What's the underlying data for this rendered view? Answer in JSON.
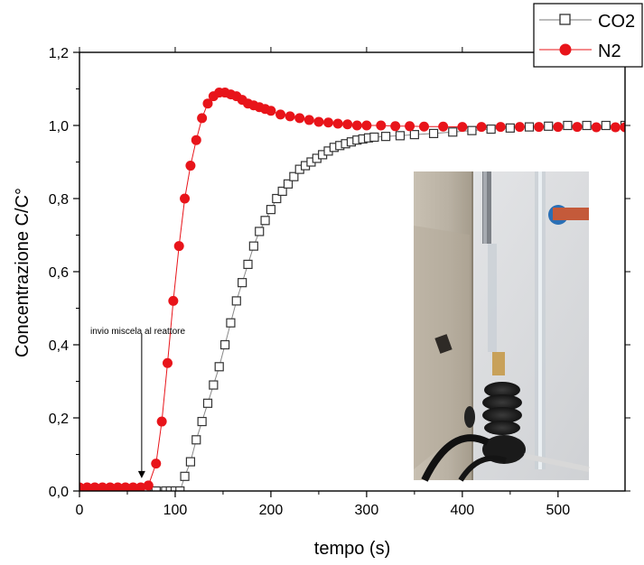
{
  "chart_data": {
    "type": "scatter",
    "xlabel": "tempo (s)",
    "ylabel": "Concentrazione C/C°",
    "xlim": [
      0,
      570
    ],
    "ylim": [
      0,
      1.2
    ],
    "x_ticks": [
      0,
      100,
      200,
      300,
      400,
      500
    ],
    "x_tick_labels": [
      "0",
      "100",
      "200",
      "300",
      "400",
      "500"
    ],
    "y_ticks": [
      0,
      0.2,
      0.4,
      0.6,
      0.8,
      1.0,
      1.2
    ],
    "y_tick_labels": [
      "0,0",
      "0,2",
      "0,4",
      "0,6",
      "0,8",
      "1,0",
      "1,2"
    ],
    "grid": false,
    "legend_position": "top-right",
    "series": [
      {
        "name": "CO2",
        "marker": "hollow-square",
        "color": "#555555",
        "x": [
          0,
          20,
          40,
          60,
          70,
          80,
          90,
          95,
          100,
          105,
          110,
          116,
          122,
          128,
          134,
          140,
          146,
          152,
          158,
          164,
          170,
          176,
          182,
          188,
          194,
          200,
          206,
          212,
          218,
          224,
          230,
          236,
          242,
          248,
          254,
          260,
          266,
          272,
          278,
          284,
          290,
          296,
          302,
          308,
          320,
          335,
          350,
          370,
          390,
          410,
          430,
          450,
          470,
          490,
          510,
          530,
          550,
          570
        ],
        "y": [
          0.0,
          0.0,
          0.0,
          0.0,
          0.0,
          0.0,
          0.0,
          0.0,
          0.0,
          0.0,
          0.04,
          0.08,
          0.14,
          0.19,
          0.24,
          0.29,
          0.34,
          0.4,
          0.46,
          0.52,
          0.57,
          0.62,
          0.67,
          0.71,
          0.74,
          0.77,
          0.8,
          0.82,
          0.84,
          0.86,
          0.88,
          0.89,
          0.9,
          0.91,
          0.92,
          0.93,
          0.94,
          0.945,
          0.95,
          0.955,
          0.96,
          0.963,
          0.966,
          0.968,
          0.97,
          0.972,
          0.975,
          0.978,
          0.982,
          0.986,
          0.99,
          0.993,
          0.996,
          0.998,
          1.0,
          1.0,
          1.0,
          1.0
        ]
      },
      {
        "name": "N2",
        "marker": "filled-circle",
        "color": "#e8141a",
        "x": [
          0,
          8,
          16,
          24,
          32,
          40,
          48,
          56,
          64,
          72,
          80,
          86,
          92,
          98,
          104,
          110,
          116,
          122,
          128,
          134,
          140,
          146,
          152,
          158,
          164,
          170,
          176,
          182,
          188,
          194,
          200,
          210,
          220,
          230,
          240,
          250,
          260,
          270,
          280,
          290,
          300,
          315,
          330,
          345,
          360,
          380,
          400,
          420,
          440,
          460,
          480,
          500,
          520,
          540,
          560,
          570
        ],
        "y": [
          0.01,
          0.01,
          0.01,
          0.01,
          0.01,
          0.01,
          0.01,
          0.01,
          0.01,
          0.015,
          0.075,
          0.19,
          0.35,
          0.52,
          0.67,
          0.8,
          0.89,
          0.96,
          1.02,
          1.06,
          1.08,
          1.09,
          1.09,
          1.085,
          1.08,
          1.07,
          1.06,
          1.055,
          1.05,
          1.045,
          1.04,
          1.03,
          1.025,
          1.02,
          1.015,
          1.01,
          1.008,
          1.005,
          1.003,
          1.0,
          1.0,
          1.0,
          0.998,
          0.998,
          0.997,
          0.997,
          0.996,
          0.996,
          0.996,
          0.996,
          0.996,
          0.996,
          0.996,
          0.995,
          0.995,
          0.995
        ]
      }
    ],
    "annotations": [
      {
        "text": "invio miscela al reattore",
        "x": 65,
        "y": 0.45,
        "arrow_to_y": 0.03
      }
    ]
  },
  "inset_photo": {
    "type": "photo",
    "subject": "reactor-apparatus"
  }
}
